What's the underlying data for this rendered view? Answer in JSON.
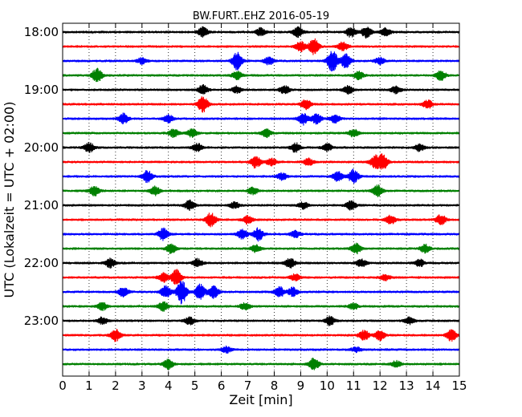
{
  "chart_data": {
    "type": "line",
    "title": "BW.FURT..EHZ 2016-05-19",
    "xlabel": "Zeit  [min]",
    "ylabel": "UTC (Lokalzeit = UTC + 02:00)",
    "xlim": [
      0,
      15
    ],
    "x_ticks": [
      "0",
      "1",
      "2",
      "3",
      "4",
      "5",
      "6",
      "7",
      "8",
      "9",
      "10",
      "11",
      "12",
      "13",
      "14",
      "15"
    ],
    "y_ticks": [
      "18:00",
      "19:00",
      "20:00",
      "21:00",
      "22:00",
      "23:00"
    ],
    "grid": true,
    "series_colors": [
      "#000000",
      "#ff0000",
      "#0000ff",
      "#008000"
    ],
    "traces": [
      {
        "start": "18:00",
        "bursts": [
          [
            5.3,
            1.0
          ],
          [
            7.5,
            0.8
          ],
          [
            8.9,
            1.0
          ],
          [
            10.9,
            1.0
          ],
          [
            11.5,
            1.2
          ],
          [
            12.2,
            0.8
          ]
        ]
      },
      {
        "start": "18:15",
        "bursts": [
          [
            9.5,
            1.6
          ],
          [
            9.0,
            1.0
          ],
          [
            10.6,
            0.9
          ]
        ]
      },
      {
        "start": "18:30",
        "bursts": [
          [
            6.6,
            1.8
          ],
          [
            10.2,
            2.2
          ],
          [
            10.7,
            1.4
          ],
          [
            7.8,
            0.8
          ],
          [
            12.0,
            0.7
          ],
          [
            3.0,
            0.6
          ]
        ]
      },
      {
        "start": "18:45",
        "bursts": [
          [
            1.3,
            1.4
          ],
          [
            6.6,
            0.8
          ],
          [
            11.2,
            0.8
          ],
          [
            14.3,
            1.0
          ]
        ]
      },
      {
        "start": "19:00",
        "bursts": [
          [
            5.3,
            1.0
          ],
          [
            6.6,
            0.7
          ],
          [
            8.4,
            0.8
          ],
          [
            10.8,
            0.8
          ],
          [
            12.6,
            0.7
          ]
        ]
      },
      {
        "start": "19:15",
        "bursts": [
          [
            5.3,
            1.6
          ],
          [
            9.2,
            1.0
          ],
          [
            13.8,
            0.9
          ]
        ]
      },
      {
        "start": "19:30",
        "bursts": [
          [
            2.3,
            1.0
          ],
          [
            4.0,
            0.8
          ],
          [
            9.1,
            1.2
          ],
          [
            9.6,
            1.0
          ],
          [
            10.3,
            0.8
          ]
        ]
      },
      {
        "start": "19:45",
        "bursts": [
          [
            4.2,
            0.8
          ],
          [
            4.9,
            0.9
          ],
          [
            7.7,
            0.8
          ],
          [
            11.0,
            0.8
          ]
        ]
      },
      {
        "start": "20:00",
        "bursts": [
          [
            1.0,
            1.0
          ],
          [
            5.1,
            0.8
          ],
          [
            8.8,
            0.9
          ],
          [
            10.0,
            0.8
          ],
          [
            13.5,
            0.7
          ]
        ]
      },
      {
        "start": "20:15",
        "bursts": [
          [
            7.3,
            1.2
          ],
          [
            7.9,
            0.8
          ],
          [
            12.1,
            1.6
          ],
          [
            11.8,
            1.2
          ],
          [
            9.3,
            0.7
          ]
        ]
      },
      {
        "start": "20:30",
        "bursts": [
          [
            3.2,
            1.2
          ],
          [
            11.0,
            1.4
          ],
          [
            10.4,
            1.0
          ],
          [
            8.3,
            0.7
          ]
        ]
      },
      {
        "start": "20:45",
        "bursts": [
          [
            1.2,
            1.0
          ],
          [
            3.5,
            0.9
          ],
          [
            11.9,
            1.2
          ],
          [
            7.2,
            0.7
          ]
        ]
      },
      {
        "start": "21:00",
        "bursts": [
          [
            4.8,
            1.0
          ],
          [
            10.9,
            0.9
          ],
          [
            9.1,
            0.7
          ],
          [
            6.5,
            0.6
          ]
        ]
      },
      {
        "start": "21:15",
        "bursts": [
          [
            5.6,
            1.4
          ],
          [
            12.4,
            0.9
          ],
          [
            14.3,
            1.0
          ],
          [
            7.0,
            0.8
          ]
        ]
      },
      {
        "start": "21:30",
        "bursts": [
          [
            3.8,
            1.2
          ],
          [
            6.8,
            1.0
          ],
          [
            7.4,
            1.4
          ],
          [
            8.8,
            0.7
          ]
        ]
      },
      {
        "start": "21:45",
        "bursts": [
          [
            4.1,
            1.0
          ],
          [
            7.3,
            0.7
          ],
          [
            11.1,
            1.0
          ],
          [
            13.7,
            0.8
          ]
        ]
      },
      {
        "start": "22:00",
        "bursts": [
          [
            1.8,
            0.9
          ],
          [
            5.1,
            0.8
          ],
          [
            8.6,
            0.9
          ],
          [
            11.3,
            0.8
          ],
          [
            13.5,
            0.7
          ]
        ]
      },
      {
        "start": "22:15",
        "bursts": [
          [
            4.3,
            1.6
          ],
          [
            3.8,
            0.9
          ],
          [
            8.8,
            0.7
          ],
          [
            12.2,
            0.6
          ]
        ]
      },
      {
        "start": "22:30",
        "bursts": [
          [
            4.5,
            2.4
          ],
          [
            5.2,
            1.6
          ],
          [
            5.7,
            1.3
          ],
          [
            3.9,
            1.2
          ],
          [
            2.3,
            1.0
          ],
          [
            8.2,
            1.0
          ],
          [
            8.7,
            0.9
          ]
        ]
      },
      {
        "start": "22:45",
        "bursts": [
          [
            1.5,
            0.8
          ],
          [
            3.8,
            0.9
          ],
          [
            6.9,
            0.7
          ],
          [
            11.0,
            0.6
          ]
        ]
      },
      {
        "start": "23:00",
        "bursts": [
          [
            1.5,
            0.7
          ],
          [
            4.8,
            0.8
          ],
          [
            10.1,
            0.9
          ],
          [
            13.1,
            0.7
          ]
        ]
      },
      {
        "start": "23:15",
        "bursts": [
          [
            2.0,
            1.2
          ],
          [
            11.4,
            1.0
          ],
          [
            12.0,
            1.0
          ],
          [
            14.7,
            1.2
          ]
        ]
      },
      {
        "start": "23:30",
        "bursts": [
          [
            6.2,
            0.6
          ],
          [
            11.1,
            0.5
          ]
        ]
      },
      {
        "start": "23:45",
        "bursts": [
          [
            4.0,
            1.0
          ],
          [
            9.5,
            1.2
          ],
          [
            12.6,
            0.6
          ]
        ]
      }
    ]
  }
}
